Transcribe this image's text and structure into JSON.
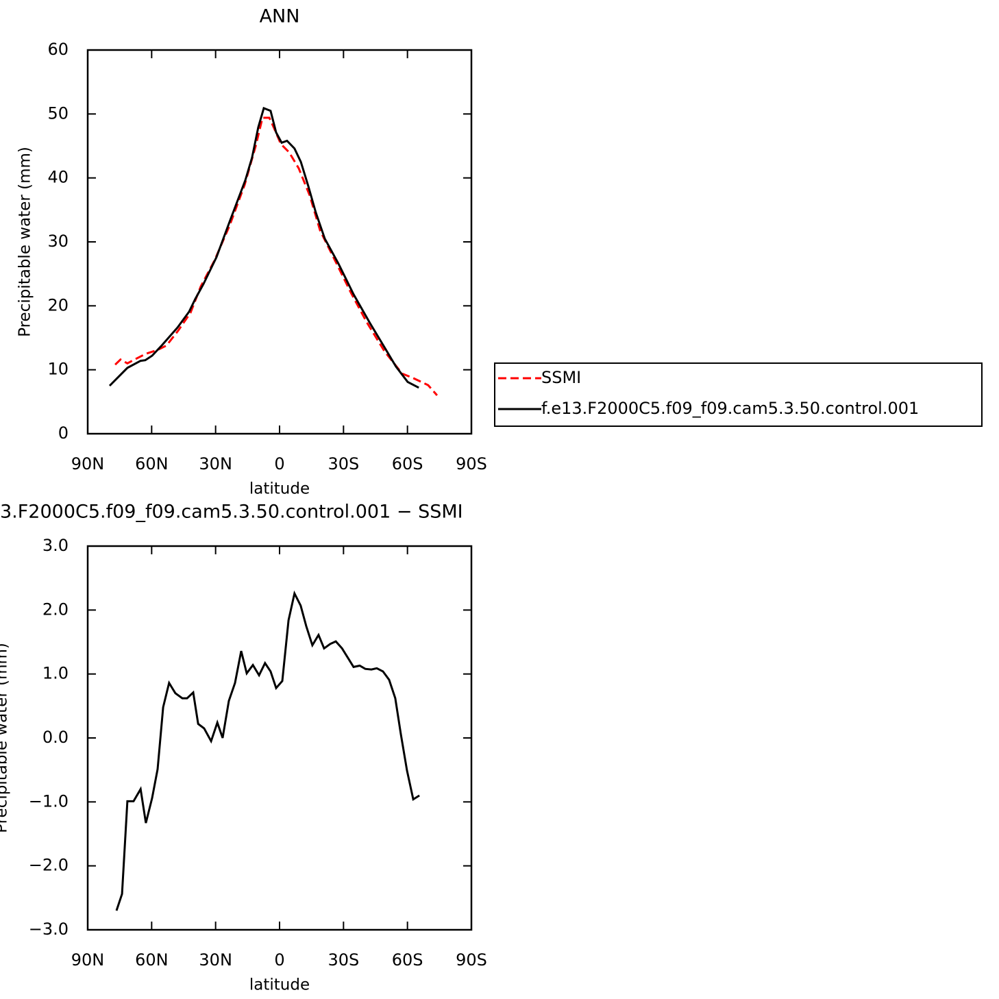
{
  "chart_data": [
    {
      "type": "line",
      "title": "ANN",
      "xlabel": "latitude",
      "ylabel": "Precipitable water (mm)",
      "xlim": [
        90,
        -90
      ],
      "ylim": [
        0,
        60
      ],
      "xticks": [
        {
          "value": 90,
          "label": "90N"
        },
        {
          "value": 60,
          "label": "60N"
        },
        {
          "value": 30,
          "label": "30N"
        },
        0,
        {
          "value": -30,
          "label": "30S"
        },
        {
          "value": -60,
          "label": "60S"
        },
        {
          "value": -90,
          "label": "90S"
        }
      ],
      "yticks": [
        0,
        10,
        20,
        30,
        40,
        50,
        60
      ],
      "legend": "right",
      "series": [
        {
          "name": "SSMI",
          "color": "#ff0000",
          "dashed": true,
          "x": [
            77.1,
            74.6,
            71.4,
            66.9,
            62.7,
            57.2,
            53,
            47.6,
            41.8,
            37,
            30.5,
            23.5,
            16.4,
            11.2,
            8,
            4.8,
            2.6,
            -0.6,
            -4.5,
            -9,
            -14.1,
            -19,
            -25.7,
            -33.4,
            -40.8,
            -49.2,
            -57.5,
            -62.7,
            -69.7,
            -73.9
          ],
          "values": [
            10.8,
            11.6,
            11.0,
            11.8,
            12.5,
            13.1,
            13.8,
            16.1,
            18.9,
            23.0,
            27.1,
            32.5,
            38.9,
            45.0,
            49.4,
            49.4,
            47.8,
            45.3,
            44.0,
            41.5,
            37.3,
            31.8,
            27.3,
            22.1,
            17.5,
            12.9,
            9.4,
            8.7,
            7.6,
            6.0
          ]
        },
        {
          "name": "f.e13.F2000C5.f09_f09.cam5.3.50.control.001",
          "color": "#000000",
          "dashed": false,
          "x": [
            79.7,
            71.4,
            65.2,
            63,
            59.8,
            55,
            47.9,
            42.4,
            39.5,
            35.7,
            29.6,
            23.5,
            16,
            12.9,
            10,
            7.4,
            4.2,
            1.6,
            -1,
            -3.5,
            -7,
            -10,
            -13.5,
            -17,
            -21.2,
            -27.6,
            -34.7,
            -42.4,
            -48.9,
            -54.6,
            -60.1,
            -65.3
          ],
          "values": [
            7.5,
            10.3,
            11.4,
            11.5,
            12.2,
            13.9,
            16.6,
            19.1,
            21.1,
            23.4,
            27.6,
            33.1,
            39.7,
            43.2,
            47.9,
            50.9,
            50.5,
            47.1,
            45.5,
            45.8,
            44.6,
            42.5,
            38.7,
            34.6,
            30.5,
            26.6,
            21.8,
            17.3,
            13.7,
            10.5,
            8.1,
            7.2
          ]
        }
      ]
    },
    {
      "type": "line",
      "title": "3.F2000C5.f09_f09.cam5.3.50.control.001 − SSMI",
      "xlabel": "latitude",
      "ylabel": "Precipitable water (mm)",
      "xlim": [
        90,
        -90
      ],
      "ylim": [
        -3,
        3
      ],
      "xticks": [
        {
          "value": 90,
          "label": "90N"
        },
        {
          "value": 60,
          "label": "60N"
        },
        {
          "value": 30,
          "label": "30N"
        },
        0,
        {
          "value": -30,
          "label": "30S"
        },
        {
          "value": -60,
          "label": "60S"
        },
        {
          "value": -90,
          "label": "90S"
        }
      ],
      "yticks": [
        {
          "value": -3,
          "label": "−3.0"
        },
        {
          "value": -2,
          "label": "−2.0"
        },
        {
          "value": -1,
          "label": "−1.0"
        },
        {
          "value": 0,
          "label": "0.0"
        },
        {
          "value": 1,
          "label": "1.0"
        },
        {
          "value": 2,
          "label": "2.0"
        },
        {
          "value": 3,
          "label": "3.0"
        }
      ],
      "color": "#000000",
      "x": [
        76.5,
        73.9,
        71.4,
        68.5,
        65.2,
        62.7,
        59.8,
        57.2,
        54.6,
        51.8,
        48.9,
        45.6,
        43.4,
        40.5,
        38.2,
        35.4,
        32.1,
        29.2,
        26.7,
        23.8,
        20.9,
        18,
        15.4,
        12.5,
        9.6,
        6.8,
        4.2,
        1.6,
        -1.3,
        -4.2,
        -7,
        -9.9,
        -12.5,
        -15.4,
        -18.3,
        -20.9,
        -23.8,
        -26.4,
        -29.3,
        -32.1,
        -34.7,
        -37.6,
        -40.2,
        -43.1,
        -45.6,
        -48.5,
        -51.4,
        -54.3,
        -56.9,
        -59.8,
        -62.7,
        -65.6
      ],
      "values": [
        -2.7,
        -2.44,
        -0.99,
        -0.99,
        -0.8,
        -1.33,
        -0.94,
        -0.49,
        0.48,
        0.86,
        0.7,
        0.62,
        0.62,
        0.71,
        0.22,
        0.15,
        -0.05,
        0.24,
        0.0,
        0.58,
        0.86,
        1.36,
        1.01,
        1.14,
        0.98,
        1.17,
        1.04,
        0.78,
        0.89,
        1.84,
        2.26,
        2.07,
        1.75,
        1.45,
        1.61,
        1.4,
        1.47,
        1.51,
        1.4,
        1.25,
        1.11,
        1.13,
        1.08,
        1.07,
        1.09,
        1.04,
        0.91,
        0.62,
        0.06,
        -0.51,
        -0.96,
        -0.9
      ]
    }
  ]
}
